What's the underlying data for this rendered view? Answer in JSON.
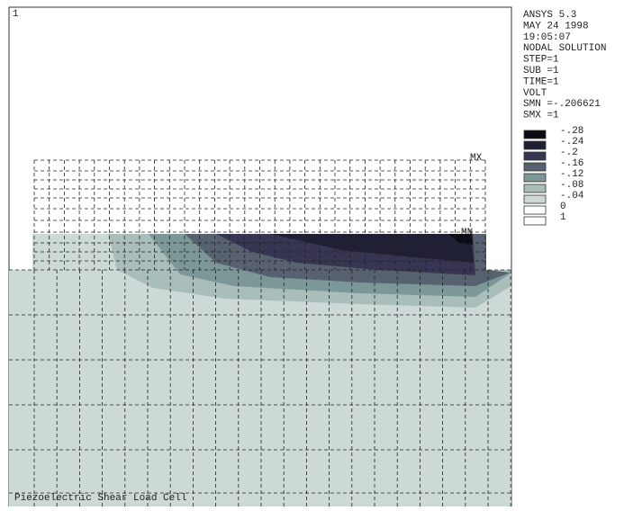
{
  "window_number": "1",
  "info": [
    "ANSYS 5.3",
    "MAY 24 1998",
    "19:05:07",
    "NODAL SOLUTION",
    "STEP=1",
    "SUB =1",
    "TIME=1",
    "VOLT",
    "SMN =-.206621",
    "SMX =1"
  ],
  "legend": [
    {
      "label": "-.28",
      "color": "#0c0c14"
    },
    {
      "label": "-.24",
      "color": "#1f1f36"
    },
    {
      "label": "-.2",
      "color": "#363652"
    },
    {
      "label": "-.16",
      "color": "#57616f"
    },
    {
      "label": "-.12",
      "color": "#7b9797"
    },
    {
      "label": "-.08",
      "color": "#a9bdba"
    },
    {
      "label": "-.04",
      "color": "#ccd9d6"
    },
    {
      "label": "0",
      "color": "#ffffff"
    },
    {
      "label": "1",
      "color": "#ffffff"
    }
  ],
  "markers": {
    "max": "MX",
    "min": "MN"
  },
  "caption": "Piezoelectric Shear Load Cell"
}
